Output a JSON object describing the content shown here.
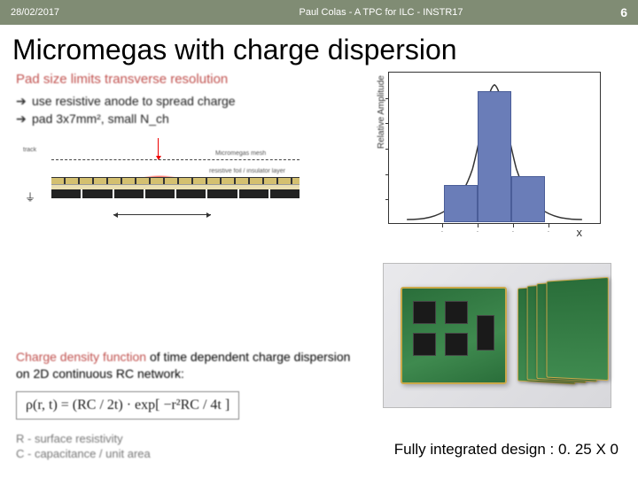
{
  "header": {
    "date": "28/02/2017",
    "title": "Paul Colas - A TPC for ILC - INSTR17",
    "page": "6"
  },
  "slide_title": "Micromegas with charge dispersion",
  "left": {
    "heading": "Pad size limits transverse resolution",
    "bullet1": "use resistive anode to spread charge",
    "bullet2": "pad 3x7mm², small N_ch",
    "diagram": {
      "mesh_label": "Micromegas mesh",
      "resistive_label": "resistive foil / insulator layer",
      "track_label": "track",
      "mesh_color": "#444444",
      "resistive_color": "#d4c070",
      "pad_color": "#222222",
      "charge_color": "#ff3020"
    },
    "density_text_red": "Charge density function",
    "density_text_rest": " of time dependent charge dispersion on 2D continuous RC network:",
    "formula": "ρ(r, t) = (RC / 2t) · exp[ −r²RC / 4t ]",
    "legend1": "R - surface resistivity",
    "legend2": "C - capacitance / unit area"
  },
  "chart": {
    "type": "bar+curve",
    "ylabel": "Relative Amplitude",
    "xlabel": "x",
    "bars": [
      {
        "x": 62,
        "w": 38,
        "h": 42,
        "color": "#6a7db8"
      },
      {
        "x": 100,
        "w": 38,
        "h": 148,
        "color": "#6a7db8"
      },
      {
        "x": 138,
        "w": 38,
        "h": 52,
        "color": "#6a7db8"
      }
    ],
    "curve_color": "#333333",
    "xlim": [
      0,
      240
    ],
    "ylim": [
      0,
      170
    ],
    "background_color": "#ffffff",
    "border_color": "#333333",
    "xtick_positions": [
      60,
      100,
      140,
      180
    ],
    "ytick_count": 5
  },
  "photo": {
    "pcb_green": "#3f8a4f",
    "pcb_border": "#caa94a",
    "chip_color": "#1a1a1a",
    "card_count": 4
  },
  "footer": "Fully integrated design : 0. 25 X 0"
}
